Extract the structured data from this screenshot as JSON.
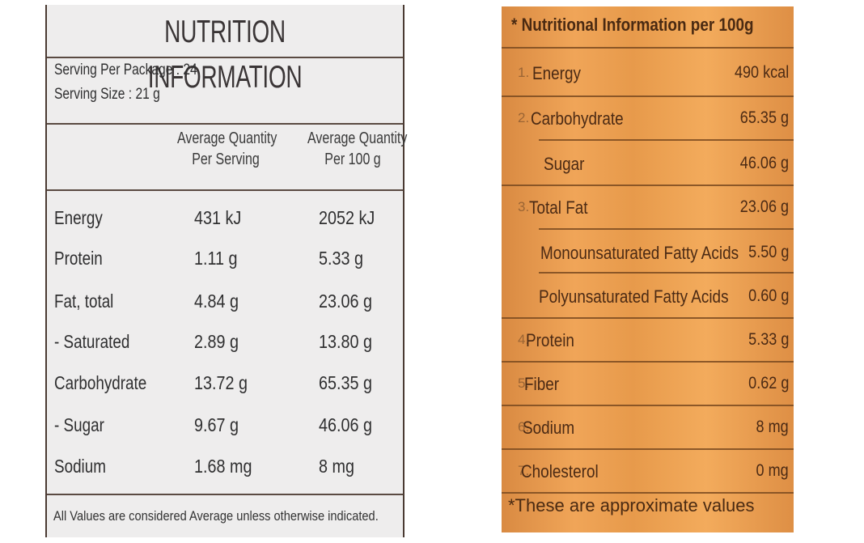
{
  "left_label": {
    "title": "NUTRITION INFORMATION",
    "serving_per_package": "Serving Per Package : 24",
    "serving_size": "Serving Size : 21 g",
    "col_serving": [
      "Average Quantity",
      "Per Serving"
    ],
    "col_100g": [
      "Average Quantity",
      "Per 100 g"
    ],
    "rows": [
      {
        "nutrient": "Energy",
        "per_serving": "431 kJ",
        "per_100g": "2052 kJ"
      },
      {
        "nutrient": "Protein",
        "per_serving": "1.11 g",
        "per_100g": "5.33 g"
      },
      {
        "nutrient": "Fat, total",
        "per_serving": "4.84 g",
        "per_100g": "23.06 g"
      },
      {
        "nutrient": "- Saturated",
        "per_serving": "2.89 g",
        "per_100g": "13.80 g"
      },
      {
        "nutrient": "Carbohydrate",
        "per_serving": "13.72 g",
        "per_100g": "65.35 g"
      },
      {
        "nutrient": "- Sugar",
        "per_serving": "9.67 g",
        "per_100g": "46.06 g"
      },
      {
        "nutrient": "Sodium",
        "per_serving": "1.68 mg",
        "per_100g": "8 mg"
      }
    ],
    "footnote": "All Values are considered Average unless otherwise indicated."
  },
  "right_label": {
    "title": "* Nutritional Information per 100g",
    "rows": [
      {
        "num": "1.",
        "label": "Energy",
        "value": "490 kcal"
      },
      {
        "num": "2.",
        "label": "Carbohydrate",
        "value": "65.35 g"
      },
      {
        "num": "",
        "label": "Sugar",
        "value": "46.06 g"
      },
      {
        "num": "3.",
        "label": "Total Fat",
        "value": "23.06 g"
      },
      {
        "num": "",
        "label": "Monounsaturated Fatty Acids",
        "value": "5.50 g"
      },
      {
        "num": "",
        "label": "Polyunsaturated Fatty Acids",
        "value": "0.60 g"
      },
      {
        "num": "4.",
        "label": "Protein",
        "value": "5.33 g"
      },
      {
        "num": "5.",
        "label": "Fiber",
        "value": "0.62 g"
      },
      {
        "num": "6.",
        "label": "Sodium",
        "value": "8 mg"
      },
      {
        "num": "7.",
        "label": "Cholesterol",
        "value": "0 mg"
      }
    ],
    "footnote": "*These are approximate values"
  },
  "colors": {
    "left_bg": "#eeeded",
    "left_rule": "#5a4a42",
    "right_bg": "#ec9f52",
    "right_text": "#4b2a14"
  }
}
